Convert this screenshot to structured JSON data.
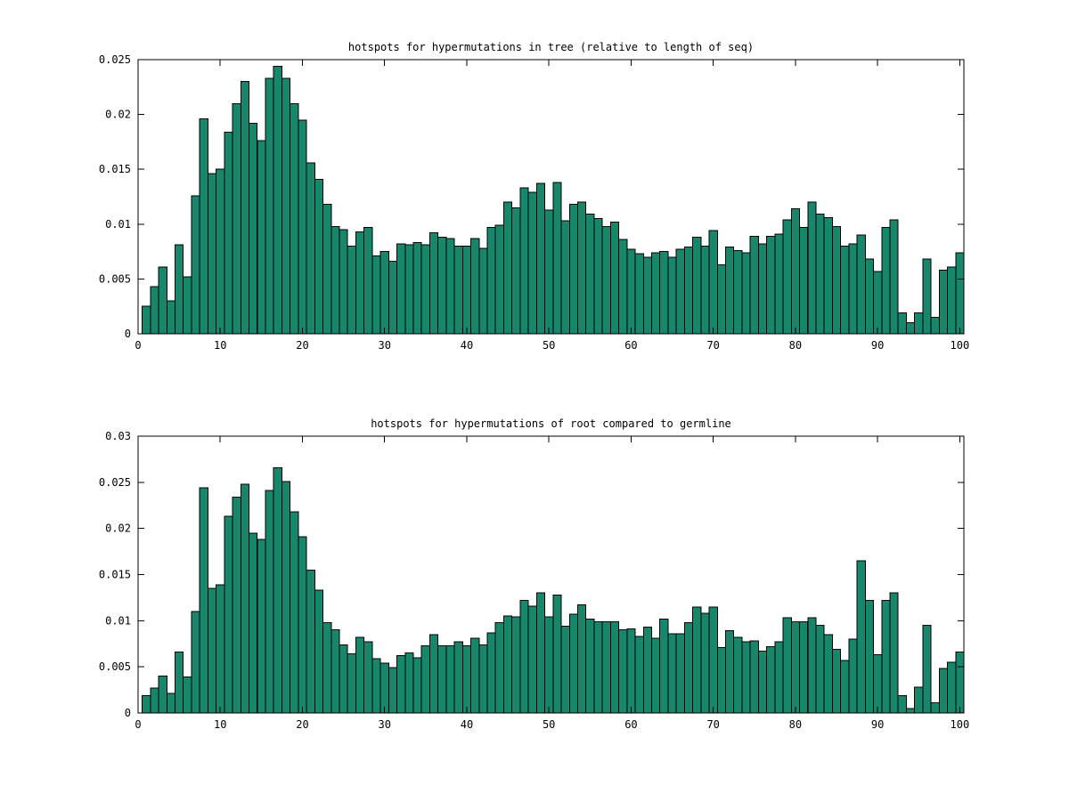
{
  "figure": {
    "background": "#ffffff",
    "bar_fill": "#17866b",
    "bar_edge": "#000000",
    "axis_color": "#000000",
    "tick_label_color": "#000000"
  },
  "chart_data": [
    {
      "type": "bar",
      "title": "hotspots for hypermutations in tree (relative to length of seq)",
      "xlabel": "",
      "ylabel": "",
      "grid": false,
      "legend": null,
      "x_start": 1,
      "bar_width": 1,
      "xlim": [
        0,
        100.5
      ],
      "ylim": [
        0,
        0.025
      ],
      "xticks": [
        0,
        10,
        20,
        30,
        40,
        50,
        60,
        70,
        80,
        90,
        100
      ],
      "xtick_labels": [
        "0",
        "10",
        "20",
        "30",
        "40",
        "50",
        "60",
        "70",
        "80",
        "90",
        "100"
      ],
      "yticks": [
        0,
        0.005,
        0.01,
        0.015,
        0.02,
        0.025
      ],
      "ytick_labels": [
        "0",
        "0.005",
        "0.01",
        "0.015",
        "0.02",
        "0.025"
      ],
      "values": [
        0.0025,
        0.0043,
        0.0061,
        0.003,
        0.0081,
        0.0052,
        0.0126,
        0.0196,
        0.0146,
        0.015,
        0.0184,
        0.021,
        0.023,
        0.0192,
        0.0176,
        0.0233,
        0.0244,
        0.0233,
        0.021,
        0.0195,
        0.0156,
        0.0141,
        0.0118,
        0.0098,
        0.0095,
        0.008,
        0.0093,
        0.0097,
        0.0071,
        0.0075,
        0.0066,
        0.0082,
        0.0081,
        0.0083,
        0.0081,
        0.0092,
        0.0088,
        0.0087,
        0.008,
        0.008,
        0.0087,
        0.0078,
        0.0097,
        0.0099,
        0.012,
        0.0115,
        0.0133,
        0.0129,
        0.0137,
        0.0113,
        0.0138,
        0.0103,
        0.0118,
        0.012,
        0.0109,
        0.0105,
        0.0098,
        0.0102,
        0.0086,
        0.0077,
        0.0073,
        0.007,
        0.0074,
        0.0075,
        0.007,
        0.0077,
        0.0079,
        0.0088,
        0.008,
        0.0094,
        0.0063,
        0.0079,
        0.0076,
        0.0074,
        0.0089,
        0.0082,
        0.0089,
        0.0091,
        0.0104,
        0.0114,
        0.0097,
        0.012,
        0.0109,
        0.0106,
        0.0098,
        0.008,
        0.0082,
        0.009,
        0.0068,
        0.0057,
        0.0097,
        0.0104,
        0.0019,
        0.001,
        0.0019,
        0.0068,
        0.0015,
        0.0058,
        0.0061,
        0.0074
      ]
    },
    {
      "type": "bar",
      "title": "hotspots for hypermutations of root compared to germline",
      "xlabel": "",
      "ylabel": "",
      "grid": false,
      "legend": null,
      "x_start": 1,
      "bar_width": 1,
      "xlim": [
        0,
        100.5
      ],
      "ylim": [
        0,
        0.03
      ],
      "xticks": [
        0,
        10,
        20,
        30,
        40,
        50,
        60,
        70,
        80,
        90,
        100
      ],
      "xtick_labels": [
        "0",
        "10",
        "20",
        "30",
        "40",
        "50",
        "60",
        "70",
        "80",
        "90",
        "100"
      ],
      "yticks": [
        0,
        0.005,
        0.01,
        0.015,
        0.02,
        0.025,
        0.03
      ],
      "ytick_labels": [
        "0",
        "0.005",
        "0.01",
        "0.015",
        "0.02",
        "0.025",
        "0.03"
      ],
      "values": [
        0.0019,
        0.0027,
        0.004,
        0.0021,
        0.0066,
        0.0039,
        0.011,
        0.0244,
        0.0135,
        0.0139,
        0.0213,
        0.0234,
        0.0248,
        0.0195,
        0.0188,
        0.0241,
        0.0266,
        0.0251,
        0.0218,
        0.0191,
        0.0155,
        0.0133,
        0.0098,
        0.009,
        0.0074,
        0.0064,
        0.0082,
        0.0077,
        0.0059,
        0.0054,
        0.0049,
        0.0062,
        0.0065,
        0.006,
        0.0073,
        0.0085,
        0.0073,
        0.0073,
        0.0077,
        0.0073,
        0.0081,
        0.0074,
        0.0087,
        0.0098,
        0.0105,
        0.0104,
        0.0122,
        0.0116,
        0.013,
        0.0104,
        0.0128,
        0.0094,
        0.0107,
        0.0117,
        0.0102,
        0.0099,
        0.0099,
        0.0099,
        0.009,
        0.0091,
        0.0083,
        0.0093,
        0.0081,
        0.0102,
        0.0086,
        0.0086,
        0.0098,
        0.0115,
        0.0108,
        0.0115,
        0.0071,
        0.0089,
        0.0082,
        0.0077,
        0.0078,
        0.0067,
        0.0072,
        0.0077,
        0.0103,
        0.0099,
        0.0099,
        0.0103,
        0.0095,
        0.0085,
        0.0069,
        0.0057,
        0.008,
        0.0165,
        0.0122,
        0.0063,
        0.0122,
        0.013,
        0.0019,
        0.0005,
        0.0028,
        0.0095,
        0.0011,
        0.0048,
        0.0055,
        0.0066
      ]
    }
  ]
}
